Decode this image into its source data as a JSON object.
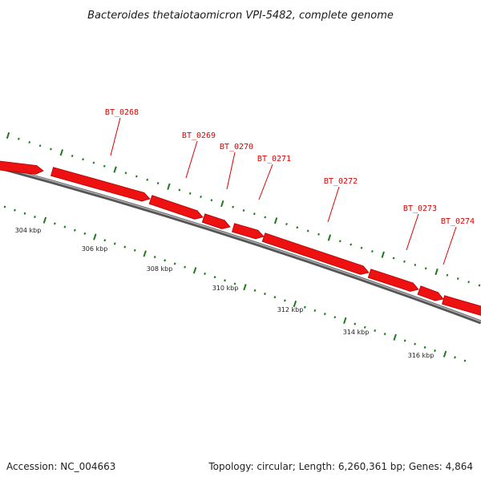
{
  "title": "Bacteroides thetaiotaomicron VPI-5482, complete genome",
  "footer": {
    "accession": "Accession: NC_004663",
    "summary": "Topology: circular; Length: 6,260,361 bp; Genes: 4,864"
  },
  "colors": {
    "gene_fill": "#ee1111",
    "gene_stroke": "#b00000",
    "gene_label": "#dd0000",
    "backbone": "#8a8a8a",
    "tick": "#1e7a1e"
  },
  "scale_labels": [
    "304 kbp",
    "306 kbp",
    "308 kbp",
    "310 kbp",
    "312 kbp",
    "314 kbp",
    "316 kbp"
  ],
  "genes": [
    {
      "name": "",
      "strand": "+"
    },
    {
      "name": "BT_0268",
      "strand": "+"
    },
    {
      "name": "BT_0269",
      "strand": "+"
    },
    {
      "name": "BT_0270",
      "strand": "+"
    },
    {
      "name": "BT_0271",
      "strand": "+"
    },
    {
      "name": "BT_0272",
      "strand": "+"
    },
    {
      "name": "BT_0273",
      "strand": "+"
    },
    {
      "name": "BT_0274",
      "strand": "+"
    },
    {
      "name": "",
      "strand": "+"
    }
  ]
}
